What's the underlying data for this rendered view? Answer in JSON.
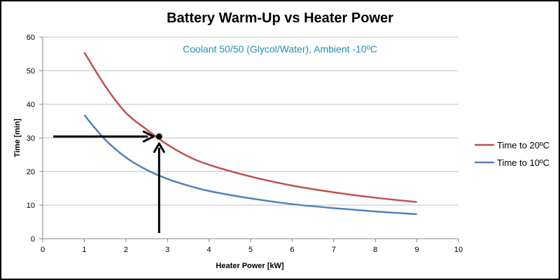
{
  "chart_data": {
    "type": "line",
    "title": "Battery Warm-Up vs Heater Power",
    "annotation": "Coolant 50/50 (Glycol/Water), Ambient -10ºC",
    "xlabel": "Heater Power [kW]",
    "ylabel": "Time [min]",
    "xlim": [
      0,
      10
    ],
    "ylim": [
      0,
      60
    ],
    "x_ticks": [
      0,
      1,
      2,
      3,
      4,
      5,
      6,
      7,
      8,
      9,
      10
    ],
    "y_ticks": [
      0,
      10,
      20,
      30,
      40,
      50,
      60
    ],
    "grid": "horizontal",
    "legend_position": "right",
    "series": [
      {
        "name": "Time to 20ºC",
        "color": "#C0504D",
        "x": [
          1,
          1.5,
          2,
          2.5,
          3,
          3.5,
          4,
          5,
          6,
          7,
          8,
          9
        ],
        "y": [
          55.5,
          45.5,
          37.5,
          32.5,
          28,
          24.5,
          22,
          18.5,
          15.8,
          13.8,
          12.2,
          10.9
        ]
      },
      {
        "name": "Time to 10ºC",
        "color": "#4F81BD",
        "x": [
          1,
          1.5,
          2,
          2.5,
          3,
          3.5,
          4,
          5,
          6,
          7,
          8,
          9
        ],
        "y": [
          36.8,
          29.5,
          24.2,
          20.5,
          17.8,
          15.8,
          14.2,
          12.0,
          10.3,
          9.1,
          8.1,
          7.3
        ]
      }
    ],
    "marker": {
      "x": 2.8,
      "y": 30,
      "color": "#000000"
    }
  }
}
